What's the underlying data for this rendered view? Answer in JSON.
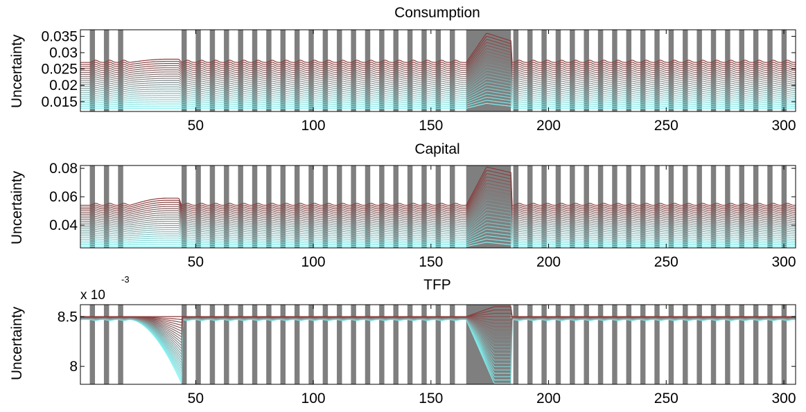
{
  "figure": {
    "colors": {
      "shade": "#7f7f7f",
      "curve_low": "#7ff2f2",
      "curve_high": "#8a3a3a",
      "axis": "#000000",
      "background": "#ffffff"
    },
    "shaded_periods": {
      "bar_starts": [
        5,
        11,
        17,
        44,
        50,
        56,
        62,
        68,
        74,
        80,
        86,
        92,
        98,
        104,
        110,
        116,
        122,
        128,
        134,
        140,
        146,
        152,
        158,
        185,
        191,
        197,
        203,
        209,
        215,
        221,
        227,
        233,
        239,
        245,
        251,
        257,
        263,
        269,
        275,
        281,
        287,
        293,
        299
      ],
      "bar_width": 2.2,
      "wide_blocks": [
        [
          164.5,
          184
        ]
      ]
    }
  },
  "chart_data": [
    {
      "type": "area",
      "title": "Consumption",
      "xlabel": "",
      "ylabel": "Uncertainty",
      "xlim": [
        1,
        305
      ],
      "ylim": [
        0.012,
        0.037
      ],
      "xticks": [
        50,
        100,
        150,
        200,
        250,
        300
      ],
      "xtick_labels": [
        "50",
        "100",
        "150",
        "200",
        "250",
        "300"
      ],
      "yticks": [
        0.015,
        0.02,
        0.025,
        0.03,
        0.035
      ],
      "ytick_labels": [
        "0.015",
        "0.02",
        "0.025",
        "0.03",
        "0.035"
      ],
      "band": {
        "min": 0.013,
        "max": 0.027,
        "count": 24
      },
      "gap": {
        "x": [
          22,
          44
        ],
        "top": 0.028
      },
      "wide_block": {
        "x": [
          165,
          184
        ],
        "top_peak": 0.036,
        "top_plateau": 0.034,
        "bottom_peak": 0.0145
      }
    },
    {
      "type": "area",
      "title": "Capital",
      "xlabel": "",
      "ylabel": "Uncertainty",
      "xlim": [
        1,
        305
      ],
      "ylim": [
        0.024,
        0.082
      ],
      "xticks": [
        50,
        100,
        150,
        200,
        250,
        300
      ],
      "xtick_labels": [
        "50",
        "100",
        "150",
        "200",
        "250",
        "300"
      ],
      "yticks": [
        0.04,
        0.06,
        0.08
      ],
      "ytick_labels": [
        "0.04",
        "0.06",
        "0.08"
      ],
      "band": {
        "min": 0.025,
        "max": 0.054,
        "count": 24
      },
      "gap": {
        "x": [
          22,
          44
        ],
        "top": 0.059
      },
      "wide_block": {
        "x": [
          165,
          184
        ],
        "top_peak": 0.081,
        "top_plateau": 0.078,
        "bottom_peak": 0.028
      }
    },
    {
      "type": "area",
      "title": "TFP",
      "xlabel": "",
      "ylabel": "Uncertainty",
      "xlim": [
        1,
        305
      ],
      "ylim": [
        7.82,
        8.62
      ],
      "y_multiplier_label": "x 10",
      "y_multiplier_exponent": "-3",
      "xticks": [
        50,
        100,
        150,
        200,
        250,
        300
      ],
      "xtick_labels": [
        "50",
        "100",
        "150",
        "200",
        "250",
        "300"
      ],
      "yticks": [
        8.0,
        8.5
      ],
      "ytick_labels": [
        "8",
        "8.5"
      ],
      "band": {
        "min": 8.47,
        "max": 8.5,
        "count": 24
      },
      "gap": {
        "x": [
          22,
          44
        ],
        "bottom": 7.83
      },
      "wide_block": {
        "x": [
          165,
          184
        ],
        "top": 8.6,
        "bottom": 7.83
      }
    }
  ]
}
